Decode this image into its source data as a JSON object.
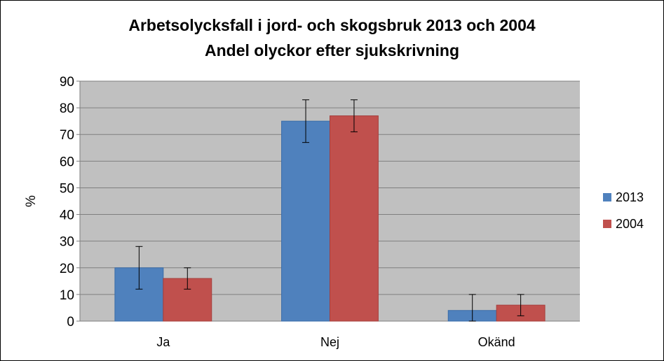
{
  "chart_data": {
    "type": "bar",
    "title": "Arbetsolycksfall i jord- och skogsbruk 2013 och 2004",
    "subtitle": "Andel olyckor efter sjukskrivning",
    "xlabel": "",
    "ylabel": "%",
    "ylim": [
      0,
      90
    ],
    "yticks": [
      0,
      10,
      20,
      30,
      40,
      50,
      60,
      70,
      80,
      90
    ],
    "categories": [
      "Ja",
      "Nej",
      "Okänd"
    ],
    "series": [
      {
        "name": "2013",
        "color": "#4F81BD",
        "values": [
          20,
          75,
          4
        ],
        "error_low": [
          12,
          67,
          0
        ],
        "error_high": [
          28,
          83,
          10
        ]
      },
      {
        "name": "2004",
        "color": "#C0504D",
        "values": [
          16,
          77,
          6
        ],
        "error_low": [
          12,
          71,
          2
        ],
        "error_high": [
          20,
          83,
          10
        ]
      }
    ],
    "grid": true,
    "legend_position": "right"
  }
}
